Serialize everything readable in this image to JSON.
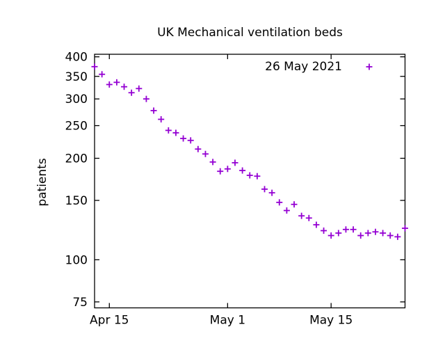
{
  "page": {
    "background_color": "#ffffff",
    "axis_color": "#000000"
  },
  "chart_data": {
    "type": "scatter",
    "title": "UK Mechanical ventilation beds",
    "xlabel": "",
    "ylabel": "patients",
    "legend": {
      "label": "26 May 2021",
      "position": "top-right-inside",
      "marker": "plus"
    },
    "marker": {
      "shape": "plus",
      "color": "#9400D3",
      "size": 9
    },
    "y_scale": "log",
    "ylim": [
      72,
      407
    ],
    "yticks": [
      400,
      350,
      300,
      250,
      200,
      150,
      100,
      75
    ],
    "xticks": [
      {
        "label": "Apr 15",
        "index": 2
      },
      {
        "label": "May 1",
        "index": 18
      },
      {
        "label": "May 15",
        "index": 32
      }
    ],
    "x_axis_range": [
      "2021-04-13",
      "2021-05-25"
    ],
    "grid": false,
    "tics_mirrored": true,
    "x": [
      "2021-04-13",
      "2021-04-14",
      "2021-04-15",
      "2021-04-16",
      "2021-04-17",
      "2021-04-18",
      "2021-04-19",
      "2021-04-20",
      "2021-04-21",
      "2021-04-22",
      "2021-04-23",
      "2021-04-24",
      "2021-04-25",
      "2021-04-26",
      "2021-04-27",
      "2021-04-28",
      "2021-04-29",
      "2021-04-30",
      "2021-05-01",
      "2021-05-02",
      "2021-05-03",
      "2021-05-04",
      "2021-05-05",
      "2021-05-06",
      "2021-05-07",
      "2021-05-08",
      "2021-05-09",
      "2021-05-10",
      "2021-05-11",
      "2021-05-12",
      "2021-05-13",
      "2021-05-14",
      "2021-05-15",
      "2021-05-16",
      "2021-05-17",
      "2021-05-18",
      "2021-05-19",
      "2021-05-20",
      "2021-05-21",
      "2021-05-22",
      "2021-05-23",
      "2021-05-24",
      "2021-05-25"
    ],
    "values": [
      374,
      355,
      331,
      336,
      326,
      313,
      322,
      300,
      277,
      261,
      242,
      238,
      229,
      226,
      213,
      206,
      195,
      183,
      186,
      194,
      184,
      178,
      177,
      162,
      158,
      148,
      140,
      146,
      135,
      133,
      127,
      122,
      118,
      120,
      123,
      123,
      118,
      120,
      121,
      120,
      118,
      117,
      124
    ]
  }
}
